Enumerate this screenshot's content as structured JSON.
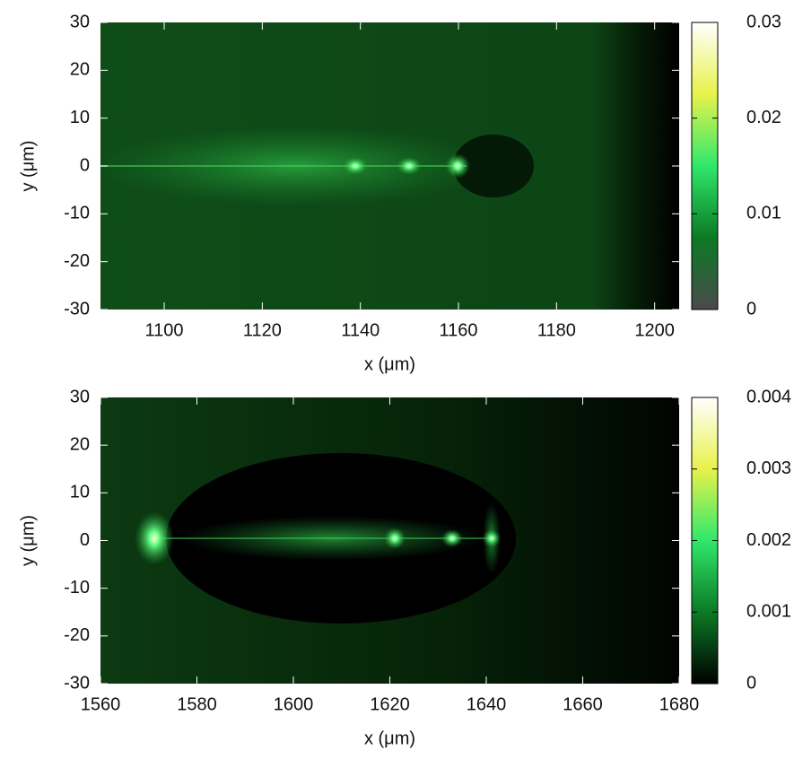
{
  "chart_data": [
    {
      "type": "heatmap",
      "xlabel": "x (μm)",
      "ylabel": "y (μm)",
      "xlim": [
        1087,
        1205
      ],
      "xticks": [
        1100,
        1120,
        1140,
        1160,
        1180,
        1200
      ],
      "ylim": [
        -30,
        30
      ],
      "yticks": [
        -30,
        -20,
        -10,
        0,
        10,
        20,
        30
      ],
      "colorbar": {
        "lim": [
          0,
          0.03
        ],
        "ticks": [
          0,
          0.01,
          0.02,
          0.03
        ],
        "colors": [
          "#4a4a4a",
          "#0b7a25",
          "#2fe86a",
          "#e8f24a",
          "#ffffff"
        ]
      }
    },
    {
      "type": "heatmap",
      "xlabel": "x (μm)",
      "ylabel": "y (μm)",
      "xlim": [
        1560,
        1680
      ],
      "xticks": [
        1560,
        1580,
        1600,
        1620,
        1640,
        1660,
        1680
      ],
      "ylim": [
        -30,
        30
      ],
      "yticks": [
        -30,
        -20,
        -10,
        0,
        10,
        20,
        30
      ],
      "colorbar": {
        "lim": [
          0,
          0.004
        ],
        "ticks": [
          0,
          0.001,
          0.002,
          0.003,
          0.004
        ],
        "colors": [
          "#000000",
          "#0b7a25",
          "#2fe86a",
          "#e8f24a",
          "#ffffff"
        ]
      }
    }
  ]
}
